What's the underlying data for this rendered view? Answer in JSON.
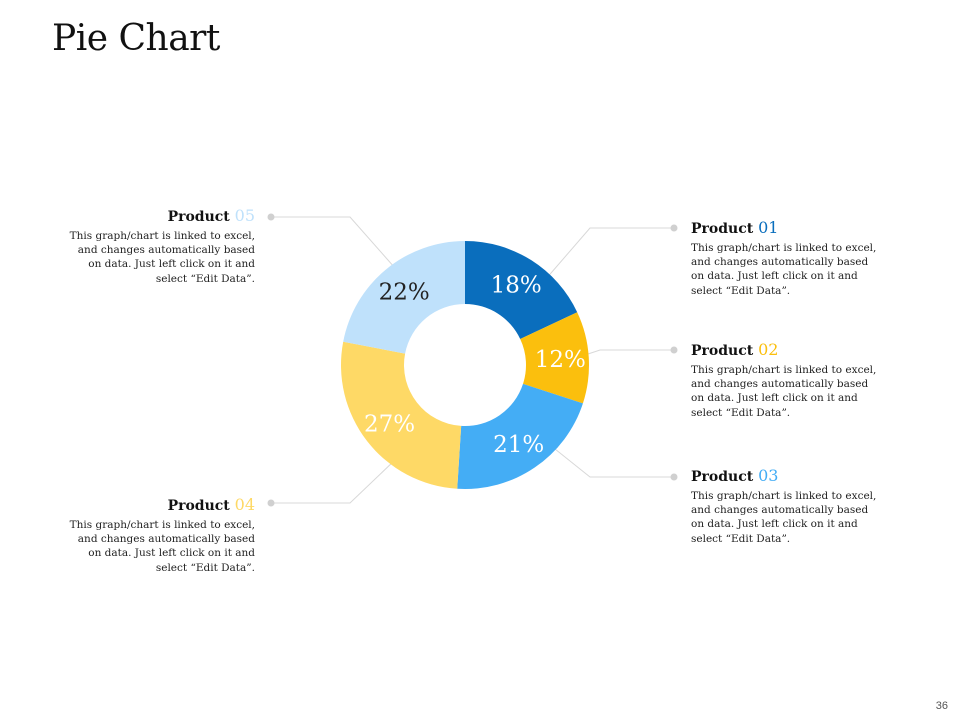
{
  "page": {
    "title": "Pie Chart",
    "page_number": "36"
  },
  "chart_data": {
    "type": "pie",
    "title": "",
    "categories": [
      "Product 01",
      "Product 02",
      "Product 03",
      "Product 04",
      "Product 05"
    ],
    "values": [
      18,
      12,
      21,
      27,
      22
    ],
    "labels": [
      "18%",
      "12%",
      "21%",
      "27%",
      "22%"
    ],
    "colors": [
      "#0a6ebd",
      "#fbbf0d",
      "#44adf5",
      "#fed966",
      "#bfe1fb"
    ],
    "label_colors": [
      "#ffffff",
      "#ffffff",
      "#ffffff",
      "#ffffff",
      "#222222"
    ],
    "donut": true
  },
  "callouts": [
    {
      "product": "Product",
      "number": "01",
      "number_color": "#0a6ebd",
      "text": "This graph/chart  is linked to excel, and changes automatically based on data. Just left click on it and select “Edit Data”."
    },
    {
      "product": "Product",
      "number": "02",
      "number_color": "#fbbf0d",
      "text": "This graph/chart  is linked to excel, and changes automatically based on data. Just left click on it and select “Edit Data”."
    },
    {
      "product": "Product",
      "number": "03",
      "number_color": "#44adf5",
      "text": "This graph/chart  is linked to excel, and changes automatically based on data. Just left click on it and select “Edit Data”."
    },
    {
      "product": "Product",
      "number": "04",
      "number_color": "#fed966",
      "text": "This graph/chart  is linked to excel, and changes automatically based on data. Just left click on it and select “Edit Data”."
    },
    {
      "product": "Product",
      "number": "05",
      "number_color": "#bfe1fb",
      "text": "This graph/chart  is linked to excel, and changes automatically based on data. Just left click on it and select “Edit Data”."
    }
  ]
}
